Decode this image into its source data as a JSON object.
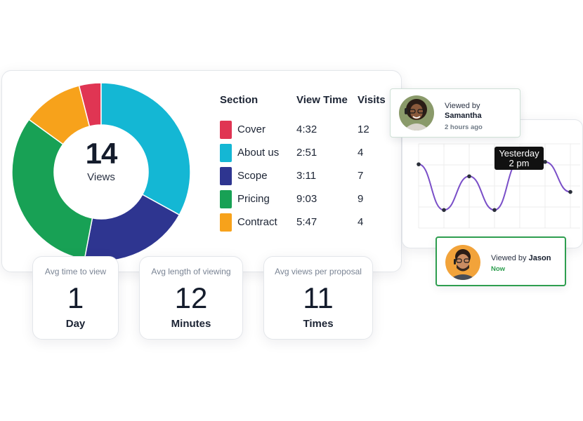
{
  "donut": {
    "number": "14",
    "caption": "Views"
  },
  "table": {
    "headers": {
      "section": "Section",
      "view_time": "View Time",
      "visits": "Visits"
    },
    "rows": [
      {
        "section": "Cover",
        "view_time": "4:32",
        "visits": "12",
        "color": "#e03553"
      },
      {
        "section": "About us",
        "view_time": "2:51",
        "visits": "4",
        "color": "#14b7d4"
      },
      {
        "section": "Scope",
        "view_time": "3:11",
        "visits": "7",
        "color": "#2e3590"
      },
      {
        "section": "Pricing",
        "view_time": "9:03",
        "visits": "9",
        "color": "#18a155"
      },
      {
        "section": "Contract",
        "view_time": "5:47",
        "visits": "4",
        "color": "#f7a21b"
      }
    ]
  },
  "stats": [
    {
      "label": "Avg time to view",
      "value": "1",
      "unit": "Day"
    },
    {
      "label": "Avg length of viewing",
      "value": "12",
      "unit": "Minutes"
    },
    {
      "label": "Avg views per proposal",
      "value": "11",
      "unit": "Times"
    }
  ],
  "viewers": [
    {
      "prefix": "Viewed by",
      "name": "Samantha",
      "time": "2 hours ago",
      "avatar_icon": "woman-avatar-icon"
    },
    {
      "prefix": "Viewed by",
      "name": "Jason",
      "time": "Now",
      "avatar_icon": "man-avatar-icon"
    }
  ],
  "tooltip": {
    "line1": "Yesterday",
    "line2": "2 pm"
  },
  "chart_data": [
    {
      "type": "pie",
      "variant": "donut",
      "categories": [
        "Cover",
        "About us",
        "Scope",
        "Pricing",
        "Contract"
      ],
      "values": [
        4,
        33,
        20,
        32,
        11
      ],
      "colors": [
        "#e03553",
        "#14b7d4",
        "#2e3590",
        "#18a155",
        "#f7a21b"
      ],
      "center_label": "14",
      "center_caption": "Views"
    },
    {
      "type": "line",
      "x": [
        1,
        2,
        3,
        4,
        5,
        6,
        7
      ],
      "values": [
        5.3,
        1.5,
        4.3,
        1.5,
        5.6,
        5.5,
        3.0
      ],
      "ylim": [
        0,
        7
      ],
      "grid": true,
      "line_color": "#7a4fc8",
      "point_color": "#2a2f3a"
    }
  ]
}
